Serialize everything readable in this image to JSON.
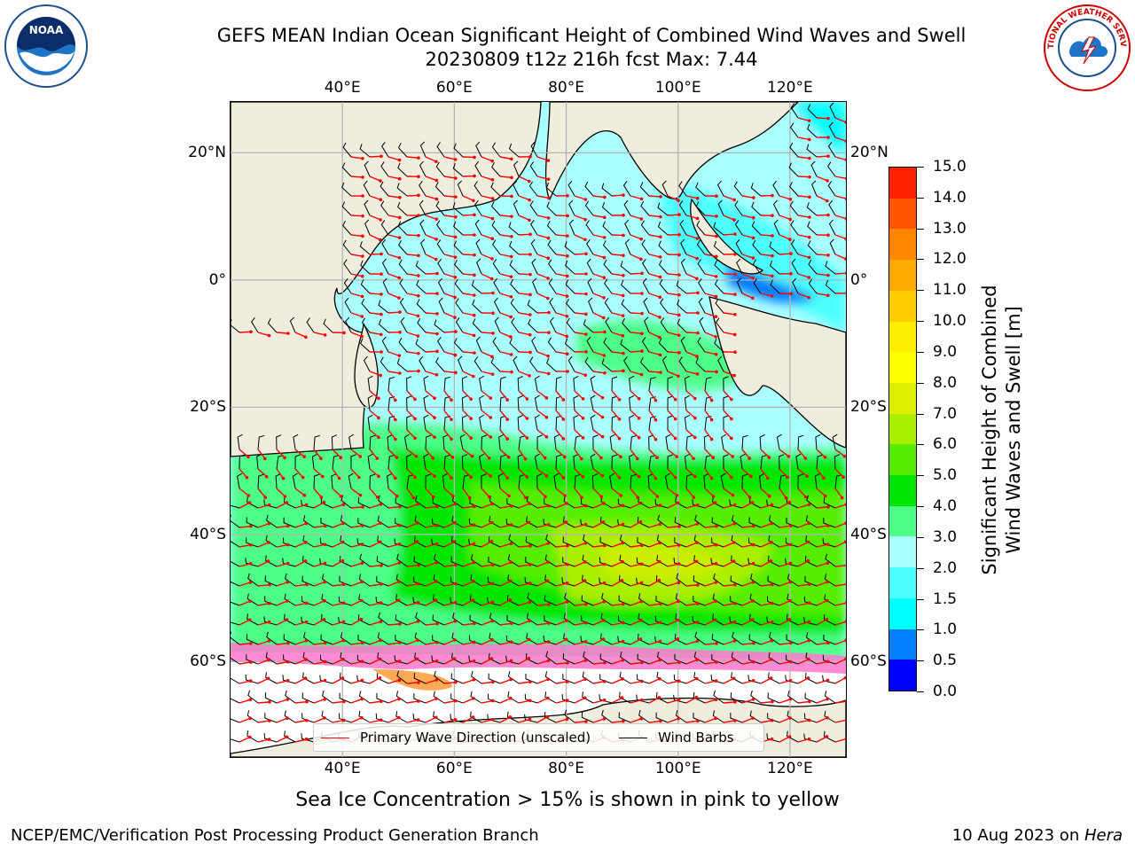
{
  "header": {
    "title_line1": "GEFS MEAN Indian Ocean Significant Height of Combined Wind Waves and Swell",
    "title_line2": "20230809 t12z 216h fcst   Max: 7.44"
  },
  "logos": {
    "left": "noaa-logo",
    "right": "national-weather-service-logo",
    "left_text": "NOAA",
    "right_text": "NATIONAL WEATHER SERVICE"
  },
  "map": {
    "lon_ticks": [
      "40°E",
      "60°E",
      "80°E",
      "100°E",
      "120°E"
    ],
    "lat_ticks": [
      "20°N",
      "0°",
      "20°S",
      "40°S",
      "60°S"
    ],
    "extent": {
      "lon_min": 20,
      "lon_max": 130,
      "lat_min": -75,
      "lat_max": 28
    },
    "gridlines": true,
    "colors": {
      "land": "#efedde",
      "coast": "#000000",
      "wave_arrow": "#ff0000",
      "wind_barb": "#000000",
      "grid": "#b4b4b4"
    }
  },
  "legend": {
    "wave_label": "Primary Wave Direction (unscaled)",
    "wind_label": "Wind Barbs",
    "position": "bottom-center"
  },
  "colorbar": {
    "title_line1": "Significant Height of Combined",
    "title_line2": "Wind Waves and Swell [m]",
    "tick_labels": [
      "0.0",
      "0.5",
      "1.0",
      "1.5",
      "2.0",
      "3.0",
      "4.0",
      "5.0",
      "6.0",
      "7.0",
      "8.0",
      "9.0",
      "10.0",
      "11.0",
      "12.0",
      "13.0",
      "14.0",
      "15.0"
    ],
    "colors": [
      "#0000ff",
      "#007fff",
      "#00ffff",
      "#4dffff",
      "#aaffff",
      "#4dff88",
      "#00e600",
      "#55ee00",
      "#aaee00",
      "#ddee00",
      "#ffff00",
      "#ffee00",
      "#ffcc00",
      "#ffaa00",
      "#ff8800",
      "#ff5500",
      "#ff2200"
    ]
  },
  "notes": {
    "ice_note": "Sea Ice Concentration > 15% is shown in pink to yellow"
  },
  "footer": {
    "left": "NCEP/EMC/Verification Post Processing Product Generation Branch",
    "date": "10 Aug 2023 on ",
    "machine": "Hera"
  }
}
